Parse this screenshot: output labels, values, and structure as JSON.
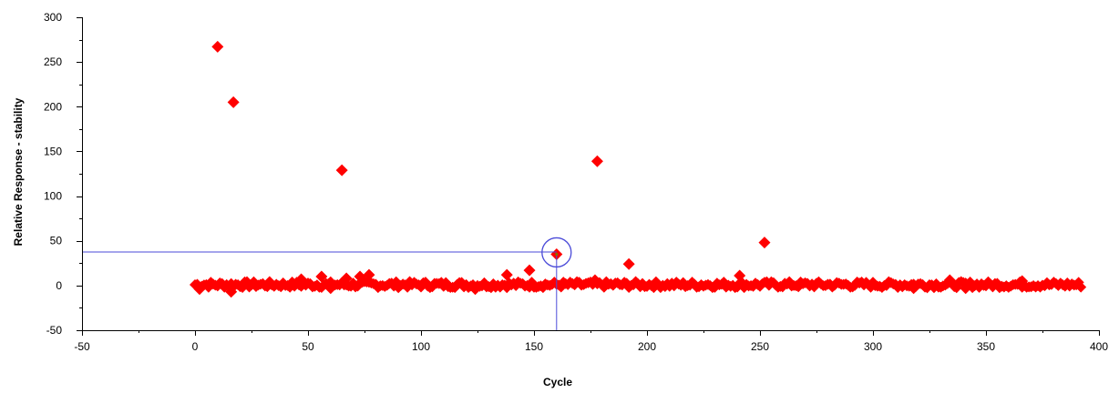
{
  "chart_data": {
    "type": "scatter",
    "title": "",
    "xlabel": "Cycle",
    "ylabel": "Relative Response - stability",
    "xlim": [
      -50,
      400
    ],
    "ylim": [
      -50,
      300
    ],
    "x_ticks": [
      -50,
      0,
      50,
      100,
      150,
      200,
      250,
      300,
      350,
      400
    ],
    "y_ticks": [
      -50,
      0,
      50,
      100,
      150,
      200,
      250,
      300
    ],
    "grid": false,
    "legend": "none",
    "marker": "diamond",
    "marker_color": "#ff0000",
    "crosshair_color": "#4a4ad8",
    "highlighted_point": {
      "x": 160,
      "y": 35
    },
    "baseline_band": {
      "x_start": 0,
      "x_end": 392,
      "y_min": -7,
      "y_max": 9
    },
    "points": [
      {
        "x": 10,
        "y": 267
      },
      {
        "x": 17,
        "y": 205
      },
      {
        "x": 65,
        "y": 129
      },
      {
        "x": 178,
        "y": 139
      },
      {
        "x": 252,
        "y": 48
      },
      {
        "x": 160,
        "y": 35
      },
      {
        "x": 192,
        "y": 24
      },
      {
        "x": 148,
        "y": 17
      },
      {
        "x": 138,
        "y": 12
      },
      {
        "x": 241,
        "y": 11
      },
      {
        "x": 56,
        "y": 10
      },
      {
        "x": 73,
        "y": 10
      },
      {
        "x": 77,
        "y": 12
      },
      {
        "x": 67,
        "y": 8
      },
      {
        "x": 47,
        "y": 7
      },
      {
        "x": 334,
        "y": 6
      },
      {
        "x": 366,
        "y": 5
      },
      {
        "x": 177,
        "y": 6
      },
      {
        "x": 16,
        "y": -7
      },
      {
        "x": 124,
        "y": -4
      },
      {
        "x": 318,
        "y": -3
      },
      {
        "x": 341,
        "y": -3
      },
      {
        "x": 60,
        "y": -3
      },
      {
        "x": 2,
        "y": -4
      }
    ]
  }
}
